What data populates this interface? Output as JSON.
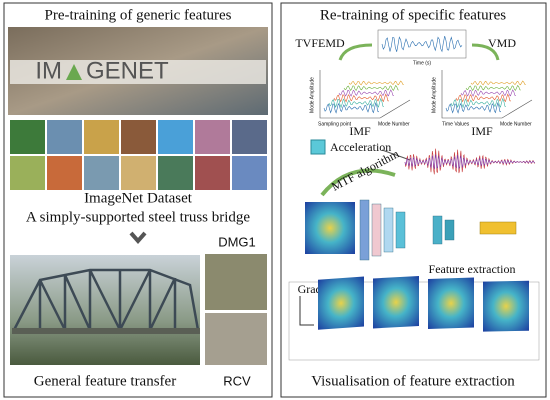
{
  "left_panel": {
    "title": "Pre-training of generic features",
    "logo": [
      "IM",
      "GENET"
    ],
    "dataset_caption": "ImageNet Dataset",
    "bridge_caption": "A simply-supported steel truss bridge",
    "damage_label": "DMG1",
    "reference_label": "RCV",
    "footer": "General feature transfer"
  },
  "right_panel": {
    "title": "Re-training of specific features",
    "decompositions": [
      {
        "label": "TVFEMD",
        "result": "IMF",
        "x_axis": "Sampling point",
        "z_axis": "Mode Number",
        "y_axis": "Mode Amplitude"
      },
      {
        "label": "VMD",
        "result": "IMF",
        "x_axis": "Time Values",
        "z_axis": "Mode Number",
        "y_axis": "Mode Amplitude"
      }
    ],
    "signal_x_axis": "Time (s)",
    "sensor_label": "Acceleration",
    "transform_label": "MTF algorithm",
    "network_label": "Feature extraction",
    "cam_label": "GradCAM++",
    "footer": "Visualisation of feature extraction"
  }
}
